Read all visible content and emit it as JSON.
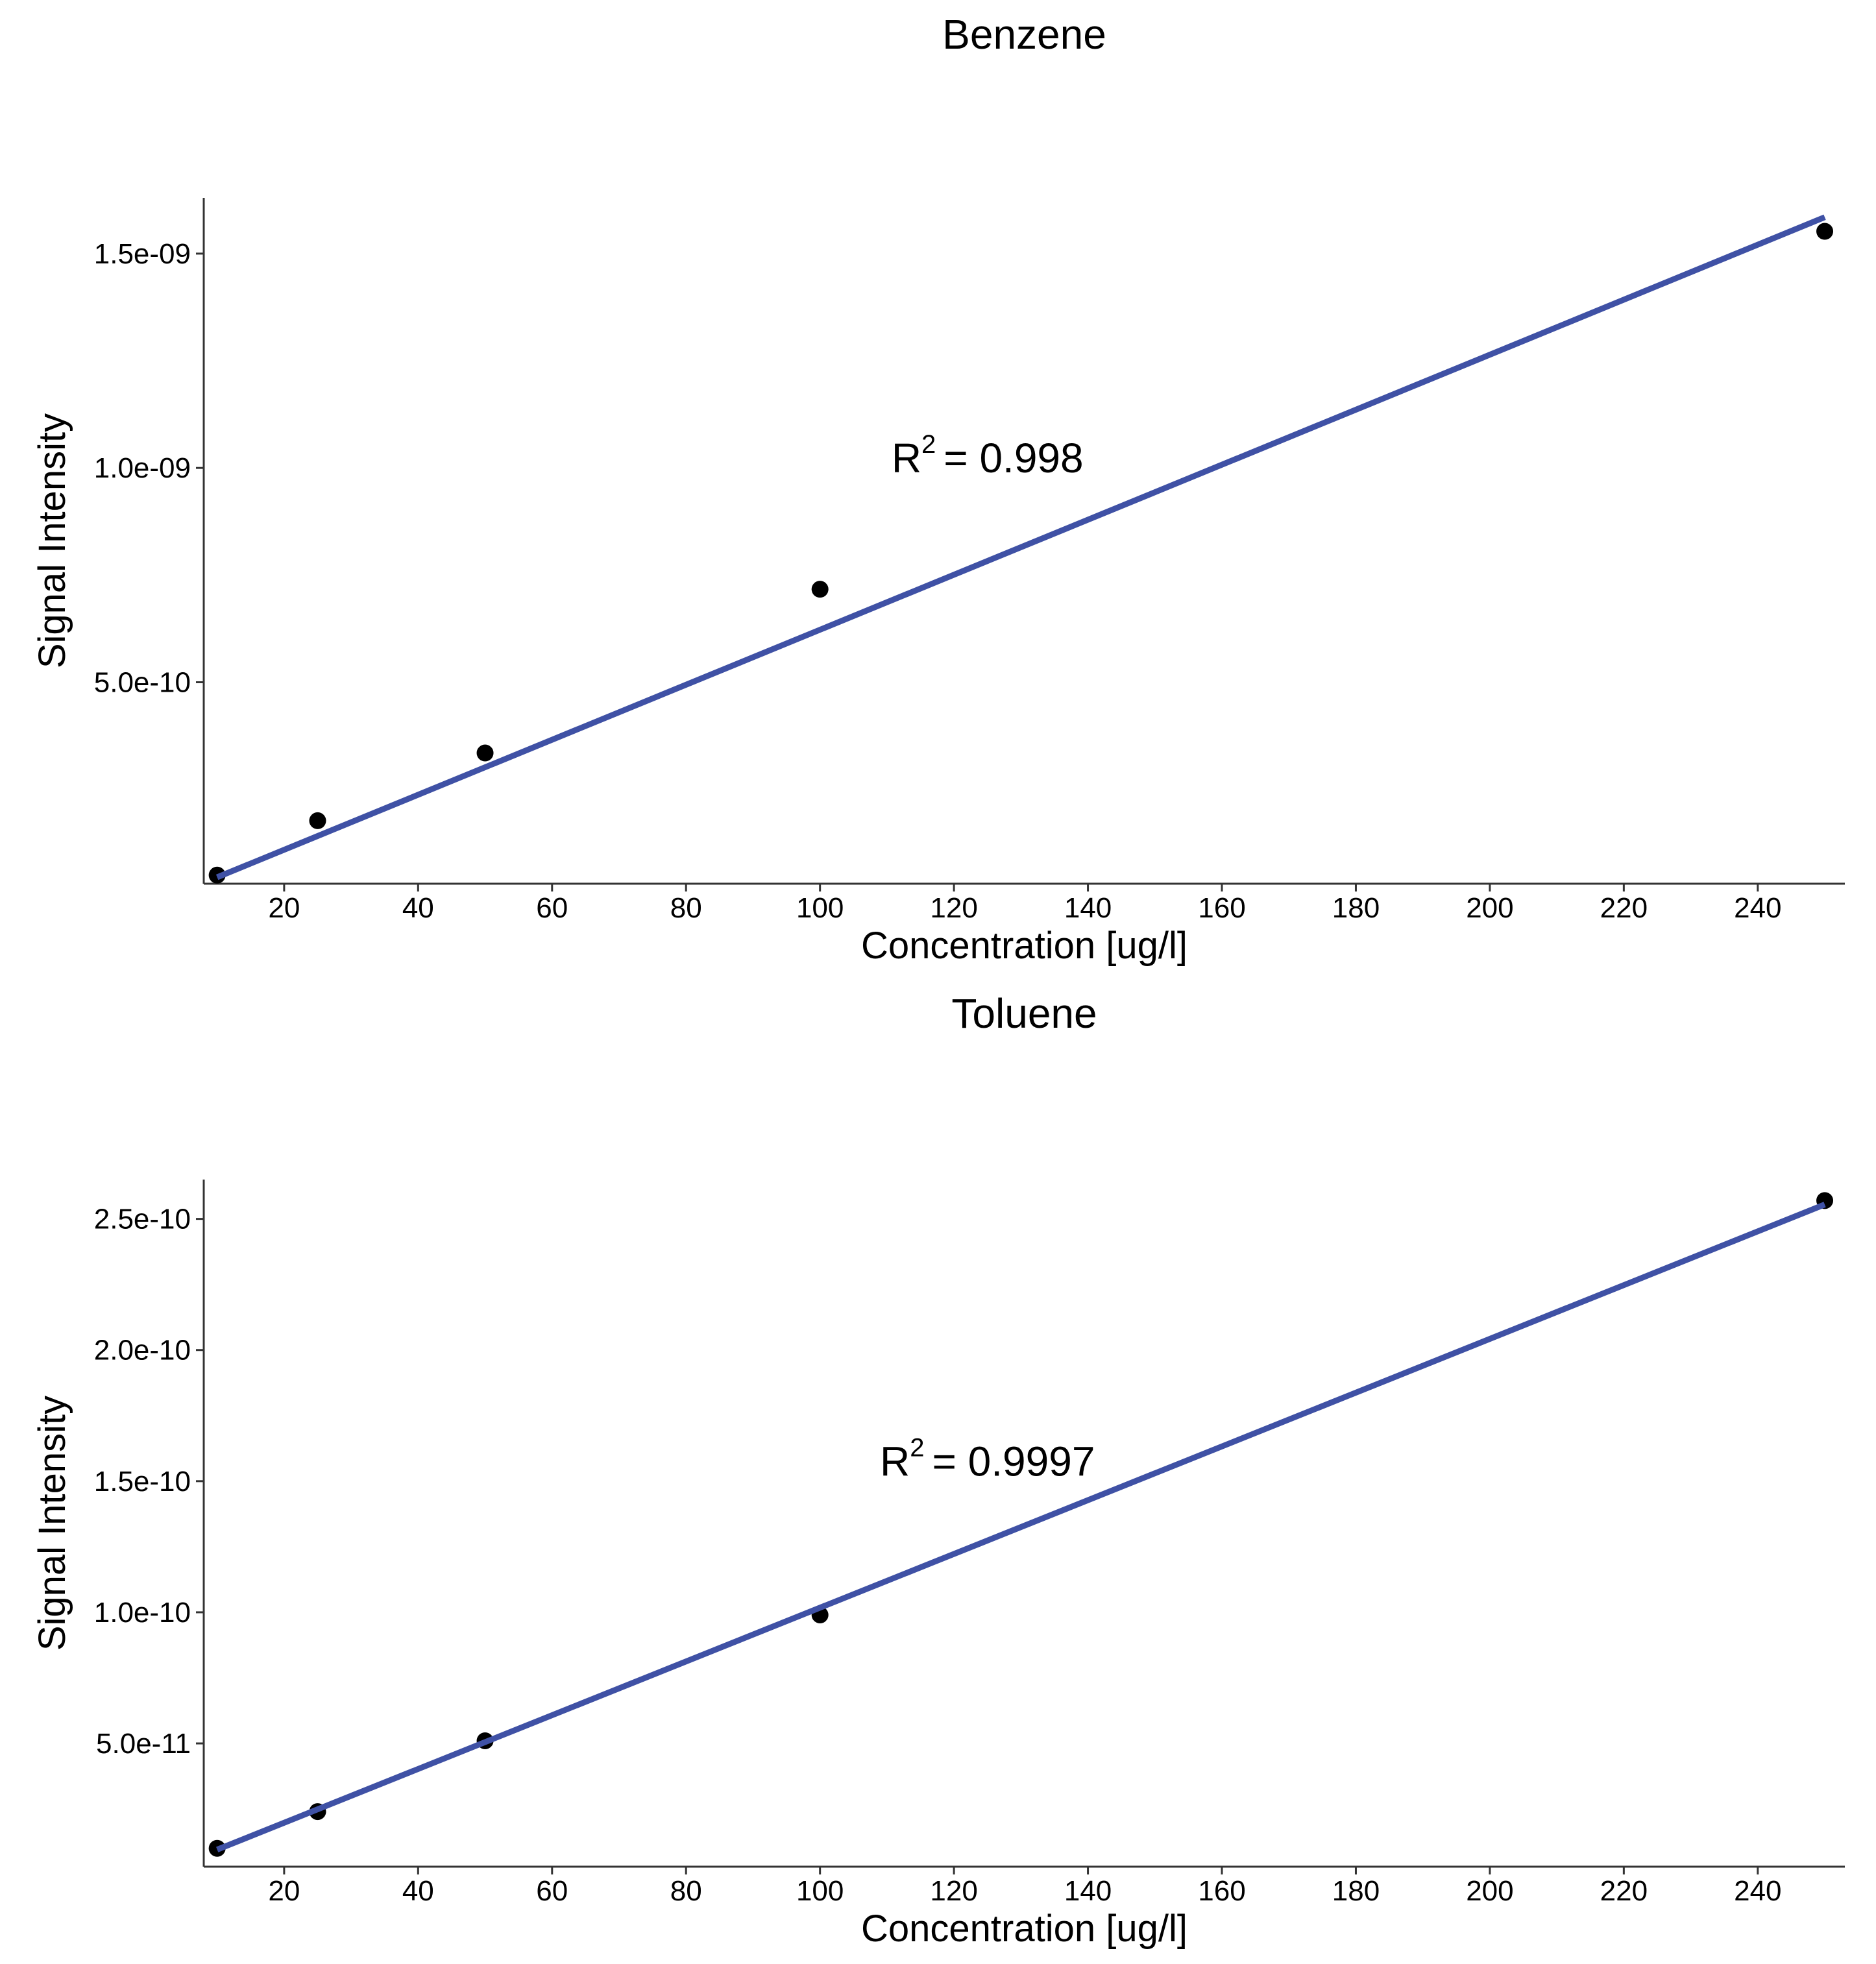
{
  "chart_data": [
    {
      "type": "scatter",
      "title": "Benzene",
      "xlabel": "Concentration [ug/l]",
      "ylabel": "Signal Intensity",
      "xlim": [
        8,
        253
      ],
      "ylim": [
        3e-11,
        1.63e-09
      ],
      "x_ticks": [
        20,
        40,
        60,
        80,
        100,
        120,
        140,
        160,
        180,
        200,
        220,
        240
      ],
      "x_tick_labels": [
        "20",
        "40",
        "60",
        "80",
        "100",
        "120",
        "140",
        "160",
        "180",
        "200",
        "220",
        "240"
      ],
      "y_ticks": [
        5e-10,
        1e-09,
        1.5e-09
      ],
      "y_tick_labels": [
        "5.0e-10",
        "1.0e-09",
        "1.5e-09"
      ],
      "grid": false,
      "points": [
        {
          "x": 10,
          "y": 5e-11
        },
        {
          "x": 25,
          "y": 1.77e-10
        },
        {
          "x": 50,
          "y": 3.35e-10
        },
        {
          "x": 100,
          "y": 7.17e-10
        },
        {
          "x": 250,
          "y": 1.552e-09
        }
      ],
      "fit_line": {
        "x": [
          10,
          250
        ],
        "y": [
          4.5e-11,
          1.585e-09
        ],
        "color": "#3F51A5"
      },
      "annotation": {
        "prefix": "R",
        "superscript": "2",
        "text": "= 0.998",
        "x": 125,
        "y": 9.9e-10
      }
    },
    {
      "type": "scatter",
      "title": "Toluene",
      "xlabel": "Concentration [ug/l]",
      "ylabel": "Signal Intensity",
      "xlim": [
        8,
        253
      ],
      "ylim": [
        3e-12,
        2.65e-10
      ],
      "x_ticks": [
        20,
        40,
        60,
        80,
        100,
        120,
        140,
        160,
        180,
        200,
        220,
        240
      ],
      "x_tick_labels": [
        "20",
        "40",
        "60",
        "80",
        "100",
        "120",
        "140",
        "160",
        "180",
        "200",
        "220",
        "240"
      ],
      "y_ticks": [
        5e-11,
        1e-10,
        1.5e-10,
        2e-10,
        2.5e-10
      ],
      "y_tick_labels": [
        "5.0e-11",
        "1.0e-10",
        "1.5e-10",
        "2.0e-10",
        "2.5e-10"
      ],
      "grid": false,
      "points": [
        {
          "x": 10,
          "y": 1e-11
        },
        {
          "x": 25,
          "y": 2.4e-11
        },
        {
          "x": 50,
          "y": 5.1e-11
        },
        {
          "x": 100,
          "y": 9.9e-11
        },
        {
          "x": 250,
          "y": 2.57e-10
        }
      ],
      "fit_line": {
        "x": [
          10,
          250
        ],
        "y": [
          9.5e-12,
          2.555e-10
        ],
        "color": "#3F51A5"
      },
      "annotation": {
        "prefix": "R",
        "superscript": "2",
        "text": "= 0.9997",
        "x": 125,
        "y": 1.52e-10
      }
    }
  ]
}
